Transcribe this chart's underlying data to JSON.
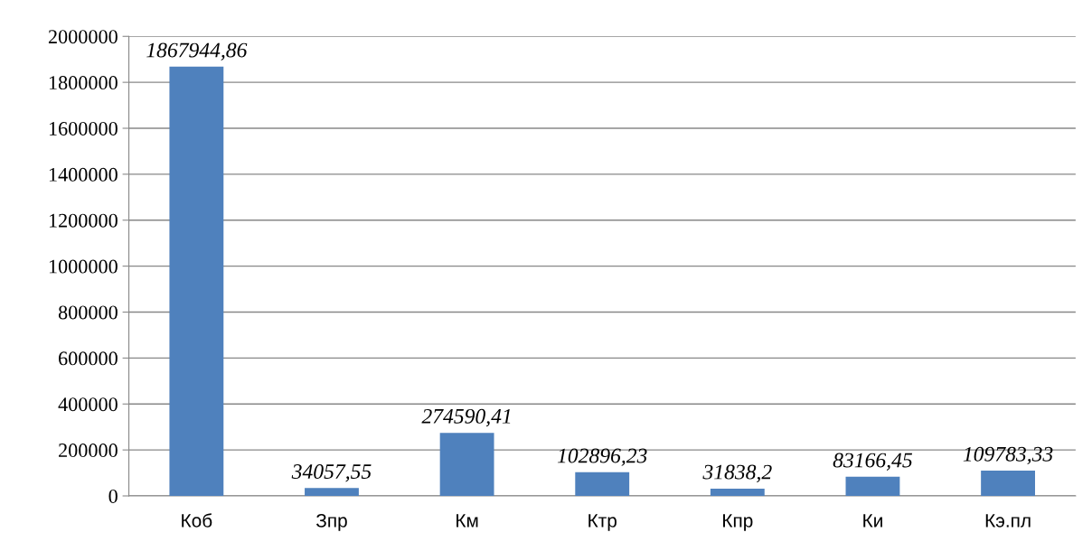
{
  "chart_data": {
    "type": "bar",
    "categories": [
      "Коб",
      "Зпр",
      "Км",
      "Ктр",
      "Кпр",
      "Ки",
      "Кэ.пл"
    ],
    "values": [
      1867944.86,
      34057.55,
      274590.41,
      102896.23,
      31838.2,
      83166.45,
      109783.33
    ],
    "value_labels": [
      "1867944,86",
      "34057,55",
      "274590,41",
      "102896,23",
      "31838,2",
      "83166,45",
      "109783,33"
    ],
    "color": "#4f81bd",
    "ylim": [
      0,
      2000000
    ],
    "yticks": [
      0,
      200000,
      400000,
      600000,
      800000,
      1000000,
      1200000,
      1400000,
      1600000,
      1800000,
      2000000
    ],
    "grid": "y",
    "legend": false
  }
}
